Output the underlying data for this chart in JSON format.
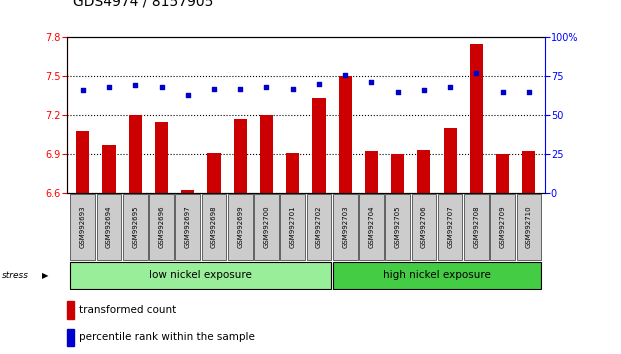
{
  "title": "GDS4974 / 8157905",
  "samples": [
    "GSM992693",
    "GSM992694",
    "GSM992695",
    "GSM992696",
    "GSM992697",
    "GSM992698",
    "GSM992699",
    "GSM992700",
    "GSM992701",
    "GSM992702",
    "GSM992703",
    "GSM992704",
    "GSM992705",
    "GSM992706",
    "GSM992707",
    "GSM992708",
    "GSM992709",
    "GSM992710"
  ],
  "red_bars": [
    7.08,
    6.97,
    7.2,
    7.15,
    6.62,
    6.91,
    7.17,
    7.2,
    6.91,
    7.33,
    7.5,
    6.92,
    6.9,
    6.93,
    7.1,
    7.75,
    6.9,
    6.92
  ],
  "blue_dots": [
    66,
    68,
    69,
    68,
    63,
    67,
    67,
    68,
    67,
    70,
    76,
    71,
    65,
    66,
    68,
    77,
    65,
    65
  ],
  "low_nickel_count": 10,
  "high_nickel_count": 8,
  "bar_color": "#cc0000",
  "dot_color": "#0000cc",
  "low_bg_color": "#99ee99",
  "high_bg_color": "#44cc44",
  "sample_bg": "#cccccc",
  "ylim_left": [
    6.6,
    7.8
  ],
  "ylim_right": [
    0,
    100
  ],
  "yticks_left": [
    6.6,
    6.9,
    7.2,
    7.5,
    7.8
  ],
  "yticks_right": [
    0,
    25,
    50,
    75,
    100
  ],
  "hline_values": [
    6.9,
    7.2,
    7.5
  ],
  "stress_label": "stress",
  "low_label": "low nickel exposure",
  "high_label": "high nickel exposure",
  "legend_bar_label": "transformed count",
  "legend_dot_label": "percentile rank within the sample",
  "title_fontsize": 10,
  "tick_fontsize": 7,
  "sample_fontsize": 5.0,
  "group_fontsize": 7.5,
  "legend_fontsize": 7.5
}
